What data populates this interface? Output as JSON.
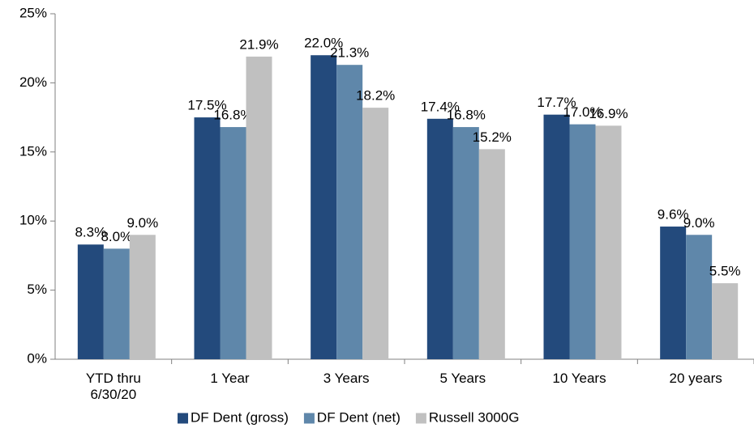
{
  "chart_data": {
    "type": "bar",
    "categories": [
      "YTD thru\n6/30/20",
      "1 Year",
      "3 Years",
      "5 Years",
      "10 Years",
      "20 years"
    ],
    "series": [
      {
        "name": "DF Dent (gross)",
        "color": "#234a7c",
        "values": [
          8.3,
          17.5,
          22.0,
          17.4,
          17.7,
          9.6
        ],
        "value_labels": [
          "8.3%",
          "17.5%",
          "22.0%",
          "17.4%",
          "17.7%",
          "9.6%"
        ]
      },
      {
        "name": "DF Dent (net)",
        "color": "#5f87aa",
        "values": [
          8.0,
          16.8,
          21.3,
          16.8,
          17.0,
          9.0
        ],
        "value_labels": [
          "8.0%",
          "16.8%",
          "21.3%",
          "16.8%",
          "17.0%",
          "9.0%"
        ]
      },
      {
        "name": "Russell 3000G",
        "color": "#c0c0c0",
        "values": [
          9.0,
          21.9,
          18.2,
          15.2,
          16.9,
          5.5
        ],
        "value_labels": [
          "9.0%",
          "21.9%",
          "18.2%",
          "15.2%",
          "16.9%",
          "5.5%"
        ]
      }
    ],
    "ylim": [
      0,
      25
    ],
    "yticks": [
      {
        "value": 0,
        "label": "0%"
      },
      {
        "value": 5,
        "label": "5%"
      },
      {
        "value": 10,
        "label": "10%"
      },
      {
        "value": 15,
        "label": "15%"
      },
      {
        "value": 20,
        "label": "20%"
      },
      {
        "value": 25,
        "label": "25%"
      }
    ],
    "grid": false,
    "legend": "bottom"
  }
}
